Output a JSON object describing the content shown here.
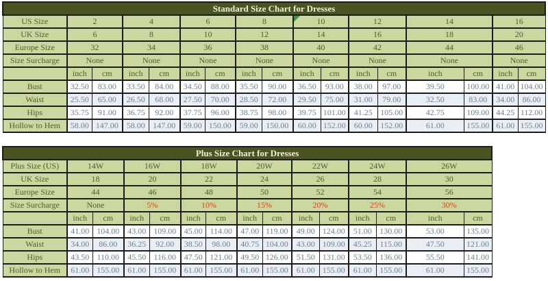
{
  "colors": {
    "title_bar_bg": "#4a5420",
    "title_text": "#f2eeda",
    "label_cell_bg": "#cad89f",
    "label_text": "#4f5e28",
    "data_text": "#6e8095",
    "alt_row_bg": "#e9eef4",
    "surcharge_red": "#e33d0f",
    "border": "#1c1c1c",
    "marker_green": "#3a9a3a"
  },
  "chart_data": [
    {
      "type": "table",
      "title": "Standard Size Chart for Dresses",
      "units": [
        "inch",
        "cm"
      ],
      "size_rows": [
        {
          "label": "US Size",
          "values": [
            "2",
            "4",
            "6",
            "8",
            "10",
            "12",
            "14",
            "16"
          ]
        },
        {
          "label": "UK Size",
          "values": [
            "6",
            "8",
            "10",
            "12",
            "14",
            "16",
            "18",
            "20"
          ]
        },
        {
          "label": "Europe Size",
          "values": [
            "32",
            "34",
            "36",
            "38",
            "40",
            "42",
            "44",
            "46"
          ]
        },
        {
          "label": "Size Surcharge",
          "values": [
            "None",
            "None",
            "None",
            "None",
            "None",
            "None",
            "None",
            "None"
          ]
        }
      ],
      "marker": {
        "size_row_index": 0,
        "value_index": 4
      },
      "measure_rows": [
        {
          "label": "Bust",
          "values": [
            [
              "32.50",
              "83.00"
            ],
            [
              "33.50",
              "84.00"
            ],
            [
              "34.50",
              "88.00"
            ],
            [
              "35.50",
              "90.00"
            ],
            [
              "36.50",
              "93.00"
            ],
            [
              "38.00",
              "97.00"
            ],
            [
              "39.50",
              "100.00"
            ],
            [
              "41.00",
              "104.00"
            ]
          ]
        },
        {
          "label": "Waist",
          "values": [
            [
              "25.50",
              "65.00"
            ],
            [
              "26.50",
              "68.00"
            ],
            [
              "27.50",
              "70.00"
            ],
            [
              "28.50",
              "72.00"
            ],
            [
              "29.50",
              "75.00"
            ],
            [
              "31.00",
              "79.00"
            ],
            [
              "32.50",
              "83.00"
            ],
            [
              "34.00",
              "86.00"
            ]
          ]
        },
        {
          "label": "Hips",
          "values": [
            [
              "35.75",
              "91.00"
            ],
            [
              "36.75",
              "92.00"
            ],
            [
              "37.75",
              "96.00"
            ],
            [
              "38.75",
              "98.00"
            ],
            [
              "39.75",
              "101.00"
            ],
            [
              "41.25",
              "105.00"
            ],
            [
              "42.75",
              "109.00"
            ],
            [
              "44.25",
              "112.00"
            ]
          ]
        },
        {
          "label": "Hollow to Hem",
          "values": [
            [
              "58.00",
              "147.00"
            ],
            [
              "58.00",
              "147.00"
            ],
            [
              "59.00",
              "150.00"
            ],
            [
              "59.00",
              "150.00"
            ],
            [
              "60.00",
              "152.00"
            ],
            [
              "60.00",
              "152.00"
            ],
            [
              "61.00",
              "155.00"
            ],
            [
              "61.00",
              "155.00"
            ]
          ]
        }
      ]
    },
    {
      "type": "table",
      "title": "Plus Size Chart for Dresses",
      "units": [
        "inch",
        "cm"
      ],
      "size_rows": [
        {
          "label": "Plus Size (US)",
          "values": [
            "14W",
            "16W",
            "18W",
            "20W",
            "22W",
            "24W",
            "26W"
          ]
        },
        {
          "label": "UK Size",
          "values": [
            "18",
            "20",
            "22",
            "24",
            "26",
            "28",
            "30"
          ]
        },
        {
          "label": "Europe Size",
          "values": [
            "44",
            "46",
            "48",
            "50",
            "52",
            "54",
            "56"
          ]
        },
        {
          "label": "Size Surcharge",
          "values": [
            "None",
            "5%",
            "10%",
            "15%",
            "20%",
            "25%",
            "30%"
          ]
        }
      ],
      "measure_rows": [
        {
          "label": "Bust",
          "values": [
            [
              "41.00",
              "104.00"
            ],
            [
              "43.00",
              "109.00"
            ],
            [
              "45.00",
              "114.00"
            ],
            [
              "47.00",
              "119.00"
            ],
            [
              "49.00",
              "124.00"
            ],
            [
              "51.00",
              "130.00"
            ],
            [
              "53.00",
              "135.00"
            ]
          ]
        },
        {
          "label": "Waist",
          "values": [
            [
              "34.00",
              "86.00"
            ],
            [
              "36.25",
              "92.00"
            ],
            [
              "38.50",
              "98.00"
            ],
            [
              "40.75",
              "104.00"
            ],
            [
              "43.00",
              "109.00"
            ],
            [
              "45.25",
              "115.00"
            ],
            [
              "47.50",
              "121.00"
            ]
          ]
        },
        {
          "label": "Hips",
          "values": [
            [
              "43.50",
              "110.00"
            ],
            [
              "45.50",
              "116.00"
            ],
            [
              "47.50",
              "121.00"
            ],
            [
              "49.50",
              "126.00"
            ],
            [
              "51.50",
              "131.00"
            ],
            [
              "53.50",
              "136.00"
            ],
            [
              "55.50",
              "141.00"
            ]
          ]
        },
        {
          "label": "Hollow to Hem",
          "values": [
            [
              "61.00",
              "155.00"
            ],
            [
              "61.00",
              "155.00"
            ],
            [
              "61.00",
              "155.00"
            ],
            [
              "61.00",
              "155.00"
            ],
            [
              "61.00",
              "155.00"
            ],
            [
              "61.00",
              "155.00"
            ],
            [
              "61.00",
              "155.00"
            ]
          ]
        }
      ]
    }
  ]
}
